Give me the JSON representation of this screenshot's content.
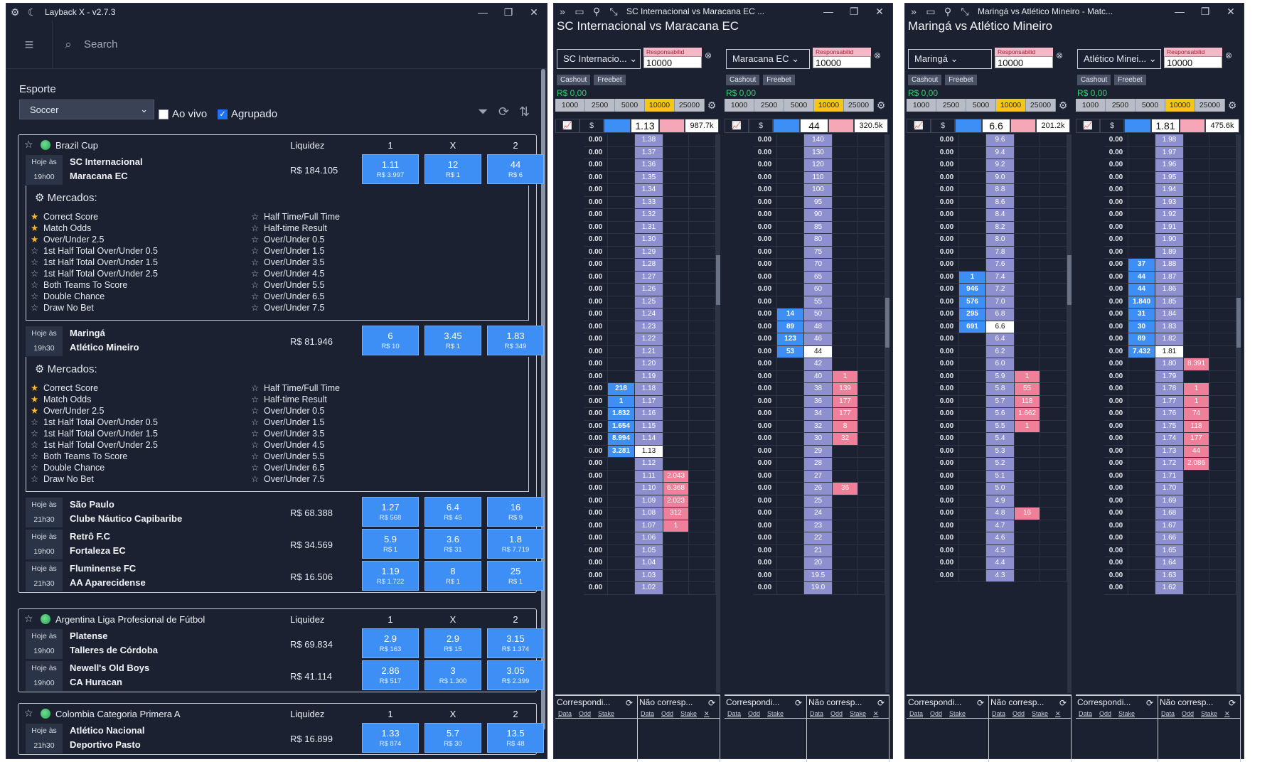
{
  "main": {
    "title": "Layback X - v2.7.3",
    "search_placeholder": "Search",
    "esporte_label": "Esporte",
    "sport_value": "Soccer",
    "ao_vivo_label": "Ao vivo",
    "agrupado_label": "Agrupado",
    "mercados_label": "Mercados:",
    "markets_left": [
      "Correct Score",
      "Match Odds",
      "Over/Under 2.5",
      "1st Half Total Over/Under 0.5",
      "1st Half Total Over/Under 1.5",
      "1st Half Total Over/Under 2.5",
      "Both Teams To Score",
      "Double Chance",
      "Draw No Bet"
    ],
    "markets_right": [
      "Half Time/Full Time",
      "Half-time Result",
      "Over/Under 0.5",
      "Over/Under 1.5",
      "Over/Under 3.5",
      "Over/Under 4.5",
      "Over/Under 5.5",
      "Over/Under 6.5",
      "Over/Under 7.5"
    ],
    "head_liquidez": "Liquidez",
    "head_1": "1",
    "head_x": "X",
    "head_2": "2",
    "groups": [
      {
        "competition": "Brazil Cup",
        "events": [
          {
            "day": "Hoje às",
            "time": "19h00",
            "home": "SC Internacional",
            "away": "Maracana EC",
            "liq": "R$ 184.105",
            "o1": "1.11",
            "s1": "R$ 3.997",
            "ox": "12",
            "sx": "R$ 1",
            "o2": "44",
            "s2": "R$ 6"
          },
          {
            "day": "Hoje às",
            "time": "19h30",
            "home": "Maringá",
            "away": "Atlético Mineiro",
            "liq": "R$ 81.946",
            "o1": "6",
            "s1": "R$ 10",
            "ox": "3.45",
            "sx": "R$ 1",
            "o2": "1.83",
            "s2": "R$ 349"
          },
          {
            "day": "Hoje às",
            "time": "21h30",
            "home": "São Paulo",
            "away": "Clube Náutico Capibaribe",
            "liq": "R$ 68.388",
            "o1": "1.27",
            "s1": "R$ 568",
            "ox": "6.4",
            "sx": "R$ 45",
            "o2": "16",
            "s2": "R$ 9"
          },
          {
            "day": "Hoje às",
            "time": "19h00",
            "home": "Retrô F.C",
            "away": "Fortaleza EC",
            "liq": "R$ 34.569",
            "o1": "5.9",
            "s1": "R$ 1",
            "ox": "3.6",
            "sx": "R$ 31",
            "o2": "1.8",
            "s2": "R$ 7.719"
          },
          {
            "day": "Hoje às",
            "time": "21h30",
            "home": "Fluminense FC",
            "away": "AA Aparecidense",
            "liq": "R$ 16.506",
            "o1": "1.19",
            "s1": "R$ 1.722",
            "ox": "8",
            "sx": "R$ 1",
            "o2": "25",
            "s2": "R$ 1"
          }
        ]
      },
      {
        "competition": "Argentina Liga Profesional de Fútbol",
        "events": [
          {
            "day": "Hoje às",
            "time": "19h00",
            "home": "Platense",
            "away": "Talleres de Córdoba",
            "liq": "R$ 69.834",
            "o1": "2.9",
            "s1": "R$ 163",
            "ox": "2.9",
            "sx": "R$ 15",
            "o2": "3.15",
            "s2": "R$ 1.374"
          },
          {
            "day": "Hoje às",
            "time": "19h00",
            "home": "Newell's Old Boys",
            "away": "CA Huracan",
            "liq": "R$ 41.114",
            "o1": "2.86",
            "s1": "R$ 517",
            "ox": "3",
            "sx": "R$ 1.300",
            "o2": "3.05",
            "s2": "R$ 2.399"
          }
        ]
      },
      {
        "competition": "Colombia Categoria Primera A",
        "events": [
          {
            "day": "Hoje às",
            "time": "21h30",
            "home": "Atlético Nacional",
            "away": "Deportivo Pasto",
            "liq": "R$ 16.899",
            "o1": "1.33",
            "s1": "R$ 874",
            "ox": "5.7",
            "sx": "R$ 30",
            "o2": "13.5",
            "s2": "R$ 48"
          }
        ]
      }
    ]
  },
  "ladder_common": {
    "resp_label": "Responsabilid",
    "resp_value": "10000",
    "cashout": "Cashout",
    "freebet": "Freebet",
    "balance": "R$ 0,00",
    "stakes": [
      "1000",
      "2500",
      "5000",
      "10000",
      "25000"
    ],
    "pl_value": "0.00",
    "matched_title": "Correspondi...",
    "unmatched_title": "Não corresp...",
    "col_data": "Data",
    "col_odd": "Odd",
    "col_stake": "Stake"
  },
  "ladders": [
    {
      "window_title": "SC Internacional vs Maracana EC ...",
      "match_title": "SC Internacional vs Maracana EC",
      "panes": [
        {
          "selection": "SC Internacio...",
          "ltp": "1.13",
          "volume": "987.7k",
          "prices": [
            "1.38",
            "1.37",
            "1.36",
            "1.35",
            "1.34",
            "1.33",
            "1.32",
            "1.31",
            "1.30",
            "1.29",
            "1.28",
            "1.27",
            "1.26",
            "1.25",
            "1.24",
            "1.23",
            "1.22",
            "1.21",
            "1.20",
            "1.19",
            "1.18",
            "1.17",
            "1.16",
            "1.15",
            "1.14",
            "1.13",
            "1.12",
            "1.11",
            "1.10",
            "1.09",
            "1.08",
            "1.07",
            "1.06",
            "1.05",
            "1.04",
            "1.03",
            "1.02"
          ],
          "back": {
            "1.18": "218",
            "1.17": "1",
            "1.16": "1.832",
            "1.15": "1.654",
            "1.14": "8.994",
            "1.13": "3.281"
          },
          "lay": {
            "1.11": "2.043",
            "1.10": "6.368",
            "1.09": "2.023",
            "1.08": "312",
            "1.07": "1"
          }
        },
        {
          "selection": "Maracana EC",
          "ltp": "44",
          "volume": "320.5k",
          "prices": [
            "140",
            "130",
            "120",
            "110",
            "100",
            "95",
            "90",
            "85",
            "80",
            "75",
            "70",
            "65",
            "60",
            "55",
            "50",
            "48",
            "46",
            "44",
            "42",
            "40",
            "38",
            "36",
            "34",
            "32",
            "30",
            "29",
            "28",
            "27",
            "26",
            "25",
            "24",
            "23",
            "22",
            "21",
            "20",
            "19.5",
            "19.0"
          ],
          "back": {
            "50": "14",
            "48": "89",
            "46": "123",
            "44": "53"
          },
          "lay": {
            "40": "1",
            "38": "139",
            "36": "177",
            "34": "177",
            "32": "8",
            "30": "32",
            "26": "36"
          }
        }
      ]
    },
    {
      "window_title": "Maringá vs Atlético Mineiro - Matc...",
      "match_title": "Maringá vs Atlético Mineiro",
      "panes": [
        {
          "selection": "Maringá",
          "ltp": "6.6",
          "volume": "201.2k",
          "prices": [
            "9.6",
            "9.4",
            "9.2",
            "9.0",
            "8.8",
            "8.6",
            "8.4",
            "8.2",
            "8.0",
            "7.8",
            "7.6",
            "7.4",
            "7.2",
            "7.0",
            "6.8",
            "6.6",
            "6.4",
            "6.2",
            "6.0",
            "5.9",
            "5.8",
            "5.7",
            "5.6",
            "5.5",
            "5.4",
            "5.3",
            "5.2",
            "5.1",
            "5.0",
            "4.9",
            "4.8",
            "4.7",
            "4.6",
            "4.5",
            "4.4",
            "4.3"
          ],
          "back": {
            "7.4": "1",
            "7.2": "946",
            "7.0": "576",
            "6.8": "295",
            "6.6": "691"
          },
          "lay": {
            "5.9": "1",
            "5.8": "55",
            "5.7": "118",
            "5.6": "1.662",
            "5.5": "1",
            "4.8": "16"
          }
        },
        {
          "selection": "Atlético Minei...",
          "ltp": "1.81",
          "volume": "475.6k",
          "prices": [
            "1.98",
            "1.97",
            "1.96",
            "1.95",
            "1.94",
            "1.93",
            "1.92",
            "1.91",
            "1.90",
            "1.89",
            "1.88",
            "1.87",
            "1.86",
            "1.85",
            "1.84",
            "1.83",
            "1.82",
            "1.81",
            "1.80",
            "1.79",
            "1.78",
            "1.77",
            "1.76",
            "1.75",
            "1.74",
            "1.73",
            "1.72",
            "1.71",
            "1.70",
            "1.69",
            "1.68",
            "1.67",
            "1.66",
            "1.65",
            "1.64",
            "1.63",
            "1.62"
          ],
          "back": {
            "1.88": "37",
            "1.87": "44",
            "1.86": "44",
            "1.85": "1.840",
            "1.84": "31",
            "1.83": "30",
            "1.82": "89",
            "1.81": "7.432"
          },
          "lay": {
            "1.80": "8.391",
            "1.78": "1",
            "1.77": "1",
            "1.76": "74",
            "1.75": "118",
            "1.74": "177",
            "1.73": "44",
            "1.72": "2.086"
          }
        }
      ]
    }
  ]
}
